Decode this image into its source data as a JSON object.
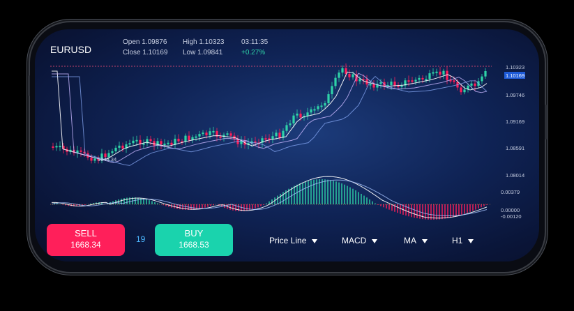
{
  "symbol": "EURUSD",
  "ohlc": {
    "open": "Open 1.09876",
    "high": "High 1.10323",
    "time": "03:11:35",
    "close": "Close 1.10169",
    "low": "Low 1.09841",
    "change": "+0.27%"
  },
  "price_axis": [
    "1.10323",
    "1.10169",
    "1.09746",
    "1.09169",
    "1.08591",
    "1.08014"
  ],
  "macd_axis": [
    "0.00379",
    "0.00000",
    "-0.00120"
  ],
  "annotation": "1046.34",
  "colors": {
    "up": "#2fd3a8",
    "down": "#ff1f5a",
    "current_price_bg": "#1e5bd8"
  },
  "sell": {
    "label": "SELL",
    "price": "1668.34"
  },
  "spread": "19",
  "buy": {
    "label": "BUY",
    "price": "1668.53"
  },
  "menu": [
    {
      "label": "Price Line",
      "icon": "chevron-down-icon"
    },
    {
      "label": "MACD",
      "icon": "chevron-down-icon"
    },
    {
      "label": "MA",
      "icon": "chevron-down-icon"
    },
    {
      "label": "H1",
      "icon": "chevron-down-icon"
    }
  ]
}
